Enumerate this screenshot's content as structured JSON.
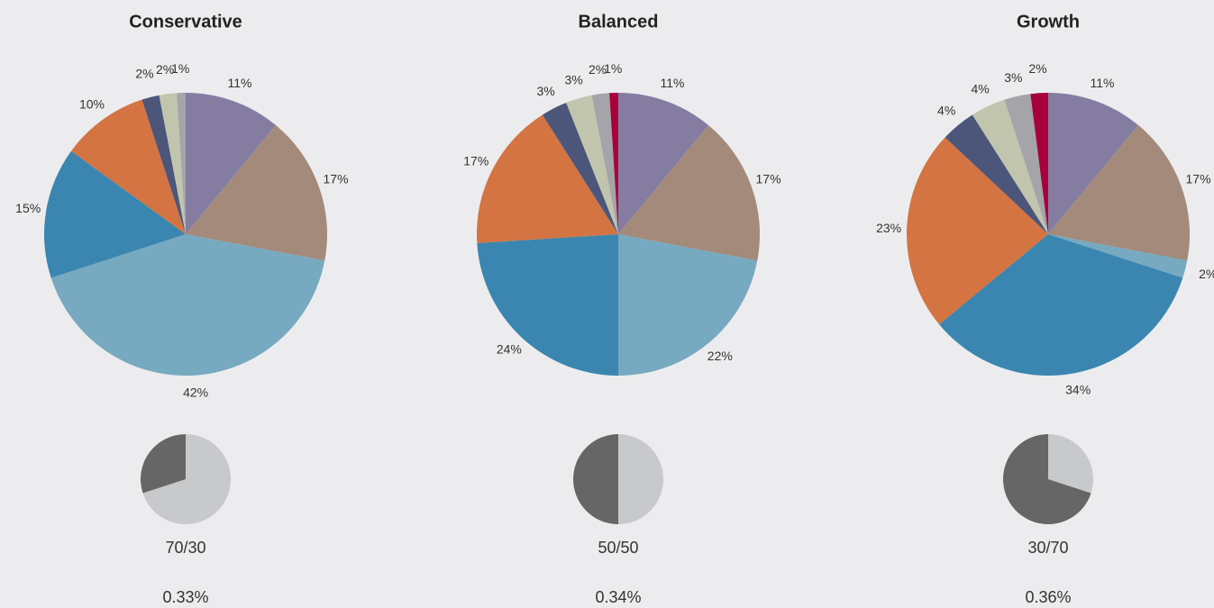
{
  "chart_data": [
    {
      "type": "pie",
      "title": "Conservative",
      "values": [
        11,
        17,
        42,
        15,
        10,
        2,
        2,
        1
      ],
      "value_labels": [
        "11%",
        "17%",
        "42%",
        "15%",
        "10%",
        "2%",
        "2%",
        "1%"
      ],
      "colors": [
        "#857ca2",
        "#a38a7a",
        "#77a9c0",
        "#3a86b0",
        "#d37442",
        "#4b567a",
        "#c2c5ad",
        "#a4a4aa"
      ]
    },
    {
      "type": "pie",
      "title": "Balanced",
      "values": [
        11,
        17,
        22,
        24,
        17,
        3,
        3,
        2,
        1
      ],
      "value_labels": [
        "11%",
        "17%",
        "22%",
        "24%",
        "17%",
        "3%",
        "3%",
        "2%",
        "1%"
      ],
      "colors": [
        "#857ca2",
        "#a38a7a",
        "#77a9c0",
        "#3a86b0",
        "#d37442",
        "#4b567a",
        "#c2c5ad",
        "#a4a4aa",
        "#a8003b"
      ]
    },
    {
      "type": "pie",
      "title": "Growth",
      "values": [
        11,
        17,
        2,
        34,
        23,
        4,
        4,
        3,
        2
      ],
      "value_labels": [
        "11%",
        "17%",
        "2%",
        "34%",
        "23%",
        "4%",
        "4%",
        "3%",
        "2%"
      ],
      "colors": [
        "#857ca2",
        "#a38a7a",
        "#77a9c0",
        "#3a86b0",
        "#d37442",
        "#4b567a",
        "#c2c5ad",
        "#a4a4aa",
        "#a8003b"
      ]
    },
    {
      "type": "pie",
      "title": "70/30",
      "annotation": "0.33%",
      "values": [
        70,
        30
      ],
      "colors": [
        "#c8c9cb",
        "#666666"
      ]
    },
    {
      "type": "pie",
      "title": "50/50",
      "annotation": "0.34%",
      "values": [
        50,
        50
      ],
      "colors": [
        "#c8c9cb",
        "#666666"
      ]
    },
    {
      "type": "pie",
      "title": "30/70",
      "annotation": "0.36%",
      "values": [
        30,
        70
      ],
      "colors": [
        "#c8c9cb",
        "#666666"
      ]
    }
  ]
}
